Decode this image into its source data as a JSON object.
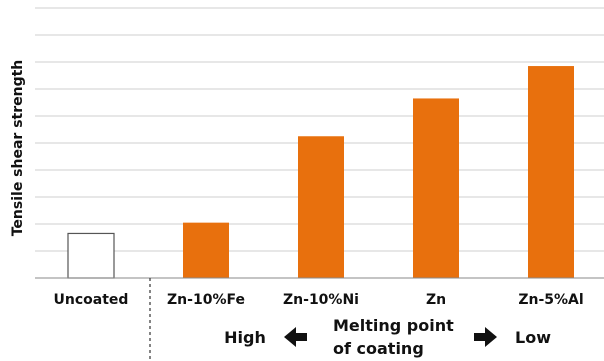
{
  "chart_data": {
    "type": "bar",
    "title": "",
    "xlabel": "",
    "ylabel": "Tensile shear strength",
    "categories": [
      "Uncoated",
      "Zn-10%Fe",
      "Zn-10%Ni",
      "Zn",
      "Zn-5%Al"
    ],
    "values": [
      1.65,
      2.05,
      5.25,
      6.65,
      7.85
    ],
    "ylim": [
      0,
      10
    ],
    "y_ticks_shown": false,
    "grid": true,
    "bar_colors": [
      "#ffffff",
      "#e8700d",
      "#e8700d",
      "#e8700d",
      "#e8700d"
    ],
    "bar_outline": "#555555",
    "separator_after_category": "Uncoated",
    "annotation": {
      "left": "High",
      "center_line1": "Melting point",
      "center_line2": "of coating",
      "right": "Low",
      "left_arrow": "arrow-left-icon",
      "right_arrow": "arrow-right-icon"
    }
  }
}
